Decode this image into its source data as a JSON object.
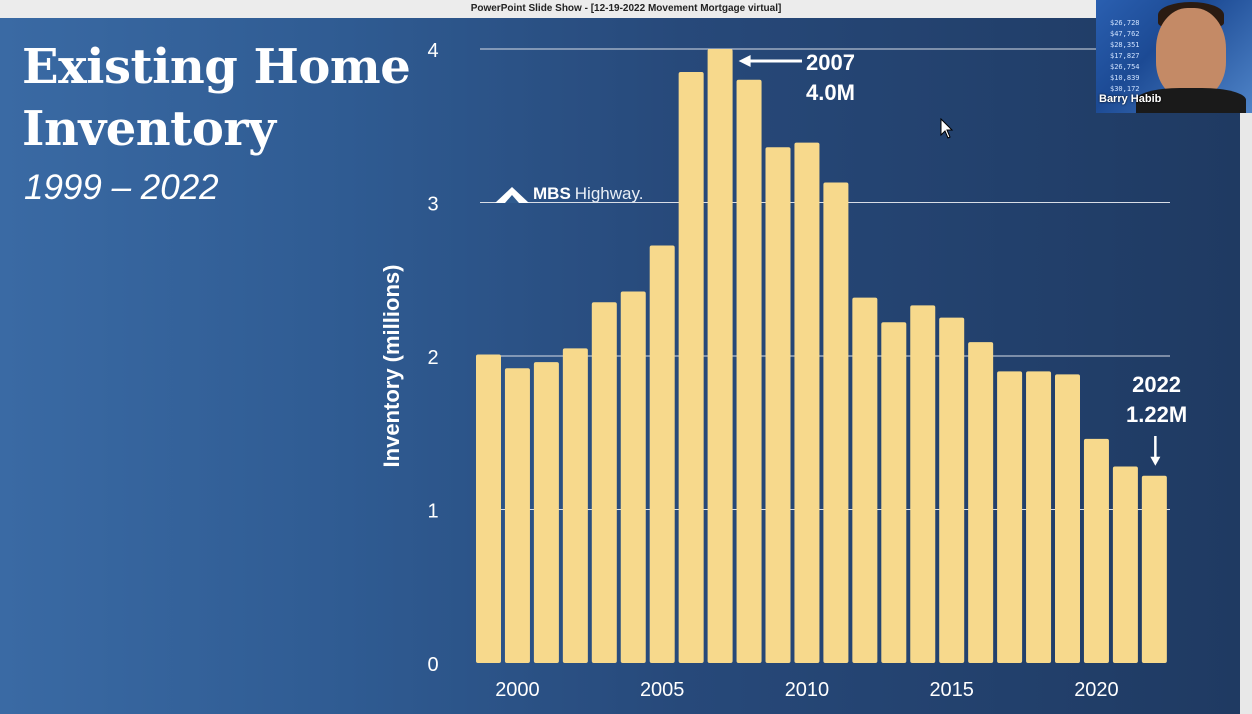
{
  "window": {
    "title": "PowerPoint Slide Show - [12-19-2022 Movement Mortgage virtual]"
  },
  "slide": {
    "title_line1": "Existing Home",
    "title_line2": "Inventory",
    "subtitle": "1999 – 2022",
    "logo_word1": "MBS",
    "logo_word2": "Highway."
  },
  "callouts": {
    "peak_year": "2007",
    "peak_value": "4.0M",
    "latest_year": "2022",
    "latest_value": "1.22M"
  },
  "participant": {
    "name": "Barry Habib",
    "ticker": [
      "$26,728",
      "$47,762",
      "$28,351",
      "$17,827",
      "$26,754",
      "$10,839",
      "$30,172"
    ]
  },
  "colors": {
    "bar": "#f7d98c",
    "gridline": "#d8dde6",
    "text": "#ffffff"
  },
  "chart_data": {
    "type": "bar",
    "title": "Existing Home Inventory",
    "subtitle": "1999 – 2022",
    "ylabel": "Inventory (millions)",
    "xlabel": "",
    "categories": [
      1999,
      2000,
      2001,
      2002,
      2003,
      2004,
      2005,
      2006,
      2007,
      2008,
      2009,
      2010,
      2011,
      2012,
      2013,
      2014,
      2015,
      2016,
      2017,
      2018,
      2019,
      2020,
      2021,
      2022
    ],
    "values": [
      2.01,
      1.92,
      1.96,
      2.05,
      2.35,
      2.42,
      2.72,
      3.85,
      4.0,
      3.8,
      3.36,
      3.39,
      3.13,
      2.38,
      2.22,
      2.33,
      2.25,
      2.09,
      1.9,
      1.9,
      1.88,
      1.46,
      1.28,
      1.22
    ],
    "ylim": [
      0,
      4
    ],
    "yticks": [
      0,
      1,
      2,
      3,
      4
    ],
    "xtick_labels": [
      "2000",
      "2005",
      "2010",
      "2015",
      "2020"
    ],
    "grid": true
  }
}
